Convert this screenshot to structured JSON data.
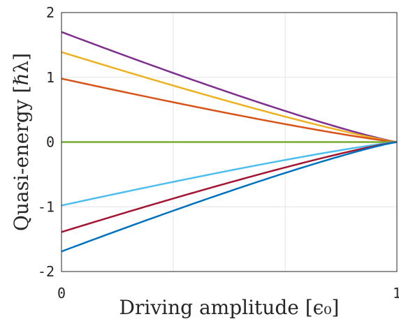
{
  "chart_data": {
    "type": "line",
    "xlabel": "Driving amplitude [ϵ₀]",
    "ylabel": "Quasi-energy [ℏλ]",
    "xlim": [
      0,
      1
    ],
    "ylim": [
      -2,
      2
    ],
    "x_ticks": [
      0,
      1
    ],
    "x_tick_labels": [
      "0",
      "1"
    ],
    "x_grid": [
      0,
      0.333,
      0.667,
      1
    ],
    "y_ticks": [
      2,
      1,
      0,
      -1,
      -2
    ],
    "y_tick_labels": [
      "2",
      "1",
      "0",
      "-1",
      "-2"
    ],
    "grid": true,
    "legend": "none",
    "series": [
      {
        "color": "#7E2F8E",
        "y0": 1.7
      },
      {
        "color": "#EDB120",
        "y0": 1.39
      },
      {
        "color": "#D95319",
        "y0": 0.98
      },
      {
        "color": "#77AC30",
        "y0": 0.0
      },
      {
        "color": "#4DBEEE",
        "y0": -0.98
      },
      {
        "color": "#A2142F",
        "y0": -1.39
      },
      {
        "color": "#0072BD",
        "y0": -1.69
      }
    ]
  }
}
